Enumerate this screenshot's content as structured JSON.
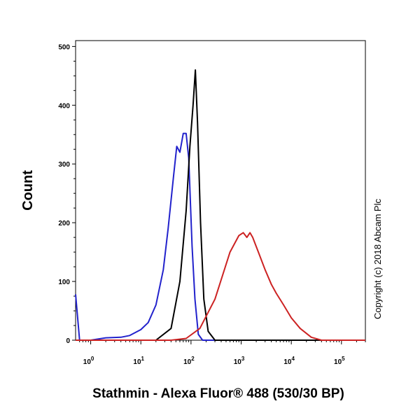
{
  "chart_data": {
    "type": "line",
    "xlabel": "Stathmin - Alexa Fluor® 488 (530/30 BP)",
    "ylabel": "Count",
    "xscale": "log",
    "xlim": [
      0.5,
      300000
    ],
    "ylim": [
      0,
      510
    ],
    "x_ticks": [
      {
        "base": "10",
        "exp": "0"
      },
      {
        "base": "10",
        "exp": "1"
      },
      {
        "base": "10",
        "exp": "2"
      },
      {
        "base": "10",
        "exp": "3"
      },
      {
        "base": "10",
        "exp": "4"
      },
      {
        "base": "10",
        "exp": "5"
      }
    ],
    "y_ticks": [
      "0",
      "100",
      "200",
      "300",
      "400",
      "500"
    ],
    "grid": false,
    "legend": "none",
    "series": [
      {
        "color": "#2222cc",
        "points": [
          [
            0.5,
            78
          ],
          [
            0.6,
            0
          ],
          [
            1,
            0
          ],
          [
            2,
            4
          ],
          [
            4,
            5
          ],
          [
            6,
            8
          ],
          [
            10,
            18
          ],
          [
            14,
            30
          ],
          [
            20,
            60
          ],
          [
            28,
            120
          ],
          [
            35,
            190
          ],
          [
            45,
            280
          ],
          [
            52,
            330
          ],
          [
            60,
            320
          ],
          [
            70,
            352
          ],
          [
            80,
            352
          ],
          [
            90,
            310
          ],
          [
            105,
            160
          ],
          [
            120,
            70
          ],
          [
            140,
            10
          ],
          [
            170,
            0
          ],
          [
            300000,
            0
          ]
        ]
      },
      {
        "color": "#000000",
        "points": [
          [
            0.5,
            0
          ],
          [
            20,
            0
          ],
          [
            40,
            20
          ],
          [
            60,
            100
          ],
          [
            80,
            220
          ],
          [
            95,
            330
          ],
          [
            110,
            400
          ],
          [
            122,
            460
          ],
          [
            135,
            370
          ],
          [
            155,
            200
          ],
          [
            180,
            70
          ],
          [
            220,
            15
          ],
          [
            300,
            0
          ],
          [
            300000,
            0
          ]
        ]
      },
      {
        "color": "#cc2222",
        "points": [
          [
            0.5,
            0
          ],
          [
            40,
            0
          ],
          [
            80,
            3
          ],
          [
            150,
            20
          ],
          [
            300,
            70
          ],
          [
            600,
            150
          ],
          [
            900,
            178
          ],
          [
            1100,
            183
          ],
          [
            1300,
            175
          ],
          [
            1500,
            183
          ],
          [
            1700,
            175
          ],
          [
            2200,
            150
          ],
          [
            3000,
            120
          ],
          [
            4000,
            95
          ],
          [
            5000,
            80
          ],
          [
            7000,
            60
          ],
          [
            10000,
            38
          ],
          [
            15000,
            20
          ],
          [
            25000,
            5
          ],
          [
            40000,
            0
          ],
          [
            300000,
            0
          ]
        ]
      }
    ]
  },
  "copyright": "Copyright (c) 2018 Abcam Plc"
}
